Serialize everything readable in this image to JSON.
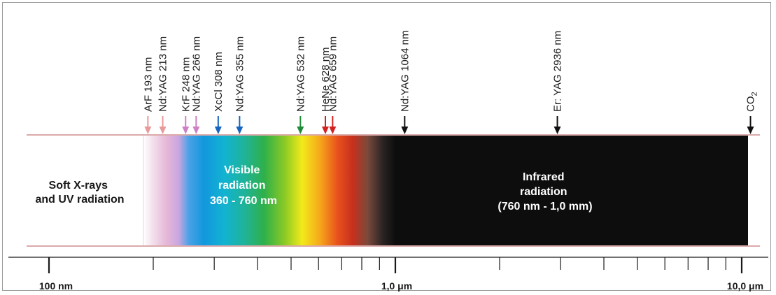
{
  "regions": {
    "uv": {
      "line1": "Soft X-rays",
      "line2": "and UV radiation"
    },
    "visible": {
      "line1": "Visible",
      "line2": "radiation",
      "line3": "360 - 760 nm"
    },
    "infrared": {
      "line1": "Infrared",
      "line2": "radiation",
      "line3": "(760 nm - 1,0 mm)"
    }
  },
  "lasers": [
    {
      "label": "ArF 193 nm",
      "nm": 193,
      "color": "#e89a9a"
    },
    {
      "label": "Nd:YAG 213 nm",
      "nm": 213,
      "color": "#e89a9a"
    },
    {
      "label": "KrF 248 nm",
      "nm": 248,
      "color": "#cf7fc4"
    },
    {
      "label": "Nd:YAG 266 nm",
      "nm": 266,
      "color": "#cf7fc4"
    },
    {
      "label": "XcCl 308 nm",
      "nm": 308,
      "color": "#1565c0"
    },
    {
      "label": "Nd:YAG 355 nm",
      "nm": 355,
      "color": "#1565c0"
    },
    {
      "label": "Nd:YAG 532 nm",
      "nm": 532,
      "color": "#1f8a3a"
    },
    {
      "label": "HeNe 628 nm",
      "nm": 628,
      "color": "#d32020"
    },
    {
      "label": "Nd:YAG 659 nm",
      "nm": 659,
      "color": "#d32020"
    },
    {
      "label": "Nd:YAG 1064 nm",
      "nm": 1064,
      "color": "#111111"
    },
    {
      "label": "Er: YAG 2936 nm",
      "nm": 2936,
      "color": "#111111"
    },
    {
      "label": "CO",
      "sub": "2",
      "nm": 10600,
      "color": "#111111"
    }
  ],
  "axis": {
    "scale": "log",
    "range_nm": [
      100,
      10600
    ],
    "major_labels": [
      {
        "text": "100 nm",
        "nm": 100
      },
      {
        "text": "1,0 μm",
        "nm": 1000
      },
      {
        "text": "10,0 μm",
        "nm": 10000
      }
    ]
  },
  "colors": {
    "band_line": "#c87878",
    "infrared": "#0d0d0d",
    "region_text": "#ffffff",
    "label_text": "#1a1a1a"
  }
}
